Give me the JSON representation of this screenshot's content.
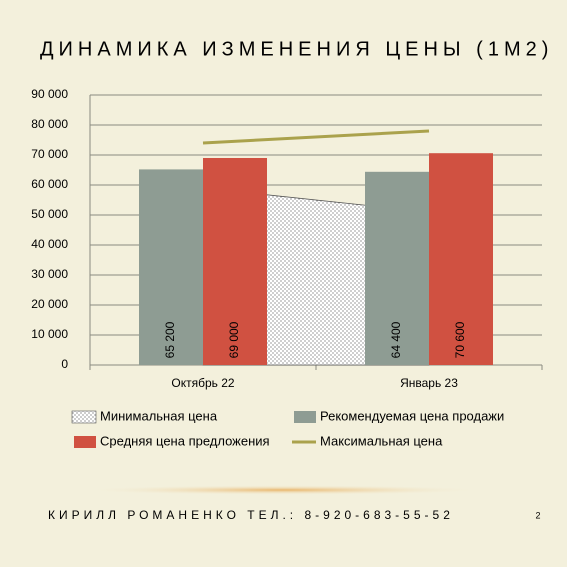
{
  "chart_data": {
    "type": "combo",
    "title": "ДИНАМИКА ИЗМЕНЕНИЯ ЦЕНЫ (1М2)",
    "categories": [
      "Октябрь 22",
      "Январь 23"
    ],
    "series": [
      {
        "name": "Минимальная цена",
        "type": "area",
        "color": "#555555",
        "values": [
          59000,
          51000
        ]
      },
      {
        "name": "Рекомендуемая цена продажи",
        "type": "bar",
        "color": "#8e9c93",
        "values": [
          65200,
          64400
        ],
        "value_labels": [
          "65 200",
          "64 400"
        ]
      },
      {
        "name": "Средняя цена предложения",
        "type": "bar",
        "color": "#d05141",
        "values": [
          69000,
          70600
        ],
        "value_labels": [
          "69 000",
          "70 600"
        ]
      },
      {
        "name": "Максимальная цена",
        "type": "line",
        "color": "#aaa24c",
        "values": [
          74000,
          78000
        ]
      }
    ],
    "ylim": [
      0,
      90000
    ],
    "yticks": [
      {
        "value": 0,
        "label": "0"
      },
      {
        "value": 10000,
        "label": "10 000"
      },
      {
        "value": 20000,
        "label": "20 000"
      },
      {
        "value": 30000,
        "label": "30 000"
      },
      {
        "value": 40000,
        "label": "40 000"
      },
      {
        "value": 50000,
        "label": "50 000"
      },
      {
        "value": 60000,
        "label": "60 000"
      },
      {
        "value": 70000,
        "label": "70 000"
      },
      {
        "value": 80000,
        "label": "80 000"
      },
      {
        "value": 90000,
        "label": "90 000"
      }
    ],
    "grid": true
  },
  "footer": {
    "text": "КИРИЛЛ РОМАНЕНКО ТЕЛ.: 8-920-683-55-52",
    "page": "2"
  }
}
